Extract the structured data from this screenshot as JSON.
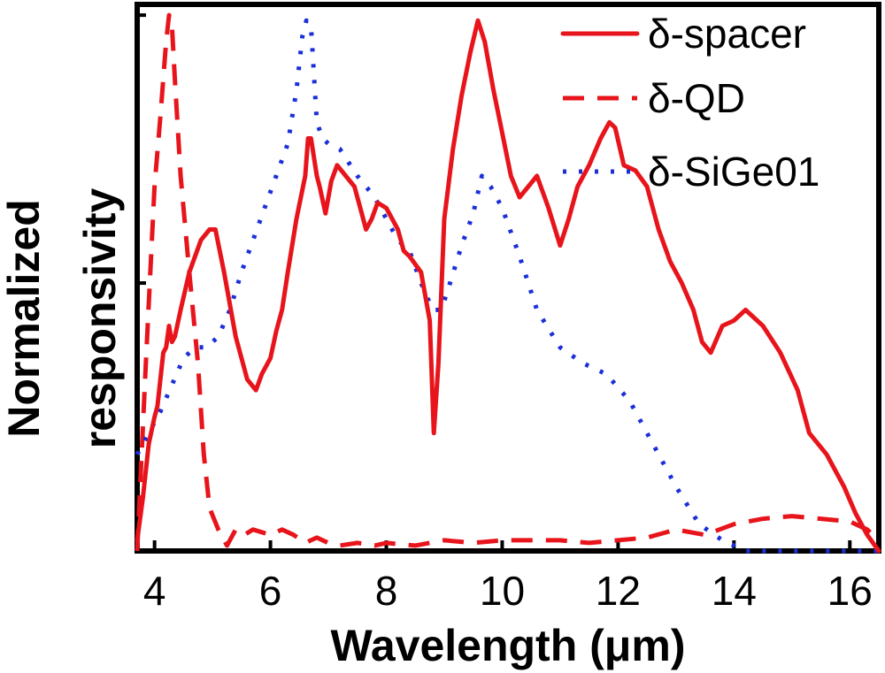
{
  "chart_data": {
    "type": "line",
    "title": "",
    "xlabel": "Wavelength (μm)",
    "ylabel_lines": [
      "Normalized",
      "responsivity"
    ],
    "xlim": [
      3.7,
      16.5
    ],
    "ylim": [
      0,
      1.02
    ],
    "xticks": [
      4,
      6,
      8,
      10,
      12,
      14,
      16
    ],
    "yticks": [
      0.5,
      1.0
    ],
    "grid": false,
    "legend_position": "top-right",
    "series": [
      {
        "name": "δ-spacer",
        "style": "solid",
        "color": "#e8141b",
        "x": [
          3.7,
          3.8,
          3.9,
          4.0,
          4.05,
          4.1,
          4.15,
          4.2,
          4.25,
          4.3,
          4.35,
          4.45,
          4.6,
          4.8,
          4.95,
          5.05,
          5.2,
          5.4,
          5.6,
          5.75,
          5.85,
          6.0,
          6.1,
          6.2,
          6.3,
          6.45,
          6.6,
          6.65,
          6.7,
          6.8,
          6.85,
          6.95,
          7.05,
          7.15,
          7.3,
          7.45,
          7.55,
          7.65,
          7.75,
          7.85,
          8.0,
          8.1,
          8.2,
          8.3,
          8.4,
          8.6,
          8.75,
          8.82,
          8.9,
          9.0,
          9.15,
          9.3,
          9.45,
          9.58,
          9.7,
          9.85,
          10.0,
          10.15,
          10.3,
          10.45,
          10.6,
          10.8,
          11.0,
          11.15,
          11.3,
          11.5,
          11.7,
          11.85,
          11.95,
          12.1,
          12.3,
          12.5,
          12.7,
          12.9,
          13.1,
          13.3,
          13.45,
          13.6,
          13.8,
          14.0,
          14.2,
          14.5,
          14.8,
          15.1,
          15.3,
          15.6,
          15.9,
          16.1,
          16.3,
          16.5
        ],
        "values": [
          0.02,
          0.1,
          0.2,
          0.25,
          0.27,
          0.32,
          0.37,
          0.38,
          0.42,
          0.39,
          0.4,
          0.45,
          0.52,
          0.58,
          0.6,
          0.6,
          0.52,
          0.4,
          0.32,
          0.3,
          0.33,
          0.36,
          0.41,
          0.45,
          0.52,
          0.62,
          0.7,
          0.77,
          0.77,
          0.7,
          0.68,
          0.63,
          0.69,
          0.72,
          0.7,
          0.68,
          0.64,
          0.6,
          0.62,
          0.65,
          0.64,
          0.62,
          0.6,
          0.56,
          0.55,
          0.52,
          0.43,
          0.22,
          0.35,
          0.62,
          0.75,
          0.85,
          0.93,
          0.99,
          0.95,
          0.86,
          0.78,
          0.7,
          0.66,
          0.68,
          0.7,
          0.64,
          0.57,
          0.62,
          0.68,
          0.72,
          0.77,
          0.8,
          0.79,
          0.72,
          0.71,
          0.68,
          0.6,
          0.54,
          0.5,
          0.45,
          0.39,
          0.37,
          0.42,
          0.43,
          0.45,
          0.42,
          0.37,
          0.3,
          0.22,
          0.18,
          0.12,
          0.07,
          0.03,
          0.0
        ]
      },
      {
        "name": "δ-QD",
        "style": "dashed",
        "color": "#e8141b",
        "x": [
          3.7,
          3.85,
          4.0,
          4.1,
          4.2,
          4.25,
          4.3,
          4.35,
          4.45,
          4.6,
          4.75,
          4.85,
          4.95,
          5.1,
          5.25,
          5.4,
          5.55,
          5.7,
          5.85,
          6.0,
          6.2,
          6.4,
          6.6,
          6.7,
          6.8,
          7.0,
          7.2,
          7.5,
          7.8,
          8.0,
          8.5,
          9.0,
          9.5,
          10.0,
          10.5,
          11.0,
          11.5,
          12.0,
          12.5,
          13.0,
          13.5,
          14.0,
          14.5,
          15.0,
          15.5,
          16.0,
          16.3,
          16.5
        ],
        "values": [
          0.0,
          0.35,
          0.68,
          0.81,
          0.95,
          1.0,
          0.98,
          0.88,
          0.7,
          0.52,
          0.35,
          0.18,
          0.08,
          0.04,
          0.01,
          0.04,
          0.03,
          0.04,
          0.035,
          0.03,
          0.04,
          0.03,
          0.015,
          0.02,
          0.025,
          0.015,
          0.01,
          0.015,
          0.01,
          0.015,
          0.01,
          0.02,
          0.015,
          0.02,
          0.02,
          0.02,
          0.015,
          0.02,
          0.025,
          0.04,
          0.03,
          0.05,
          0.06,
          0.065,
          0.06,
          0.055,
          0.04,
          0.02
        ]
      },
      {
        "name": "δ-SiGe01",
        "style": "dotted",
        "color": "#1b2fd8",
        "x": [
          3.7,
          3.9,
          4.1,
          4.3,
          4.5,
          4.7,
          4.9,
          5.1,
          5.3,
          5.5,
          5.7,
          5.9,
          6.1,
          6.3,
          6.45,
          6.55,
          6.62,
          6.7,
          6.8,
          6.9,
          7.0,
          7.2,
          7.5,
          7.8,
          8.0,
          8.2,
          8.4,
          8.6,
          8.8,
          8.95,
          9.1,
          9.3,
          9.5,
          9.65,
          9.8,
          10.0,
          10.3,
          10.6,
          11.0,
          11.4,
          11.8,
          12.2,
          12.6,
          13.0,
          13.4,
          13.8,
          14.2,
          14.6,
          15.0,
          15.4,
          15.8,
          16.2,
          16.5
        ],
        "values": [
          0.18,
          0.22,
          0.26,
          0.31,
          0.36,
          0.38,
          0.38,
          0.4,
          0.45,
          0.52,
          0.58,
          0.64,
          0.7,
          0.76,
          0.86,
          0.96,
          0.99,
          0.98,
          0.8,
          0.77,
          0.76,
          0.75,
          0.7,
          0.66,
          0.62,
          0.58,
          0.56,
          0.5,
          0.45,
          0.45,
          0.5,
          0.57,
          0.63,
          0.7,
          0.68,
          0.64,
          0.55,
          0.45,
          0.38,
          0.35,
          0.33,
          0.28,
          0.2,
          0.12,
          0.05,
          0.02,
          0.0,
          0.0,
          0.0,
          0.0,
          0.0,
          0.0,
          0.0
        ]
      }
    ]
  }
}
